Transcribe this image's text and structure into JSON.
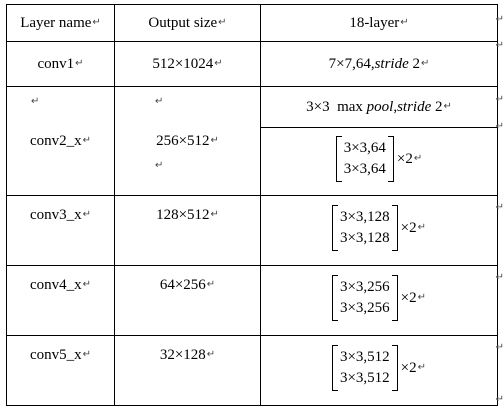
{
  "header": {
    "layer_name": "Layer name",
    "output_size": "Output size",
    "arch": "18-layer"
  },
  "paragraph_mark": "↵",
  "rows": [
    {
      "layer": "conv1",
      "size": "512×1024",
      "spec_prefix": "7×7,64,",
      "spec_italic": "stride",
      "spec_suffix": " 2"
    },
    {
      "layer": "conv2_x",
      "size": "256×512",
      "pool_prefix": "3×3  max ",
      "pool_italic1": "pool",
      "pool_mid": ",",
      "pool_italic2": "stride",
      "pool_suffix": " 2",
      "block": [
        "3×3,64",
        "3×3,64"
      ],
      "mult": "×2"
    },
    {
      "layer": "conv3_x",
      "size": "128×512",
      "block": [
        "3×3,128",
        "3×3,128"
      ],
      "mult": "×2"
    },
    {
      "layer": "conv4_x",
      "size": "64×256",
      "block": [
        "3×3,256",
        "3×3,256"
      ],
      "mult": "×2"
    },
    {
      "layer": "conv5_x",
      "size": "32×128",
      "block": [
        "3×3,512",
        "3×3,512"
      ],
      "mult": "×2"
    }
  ]
}
